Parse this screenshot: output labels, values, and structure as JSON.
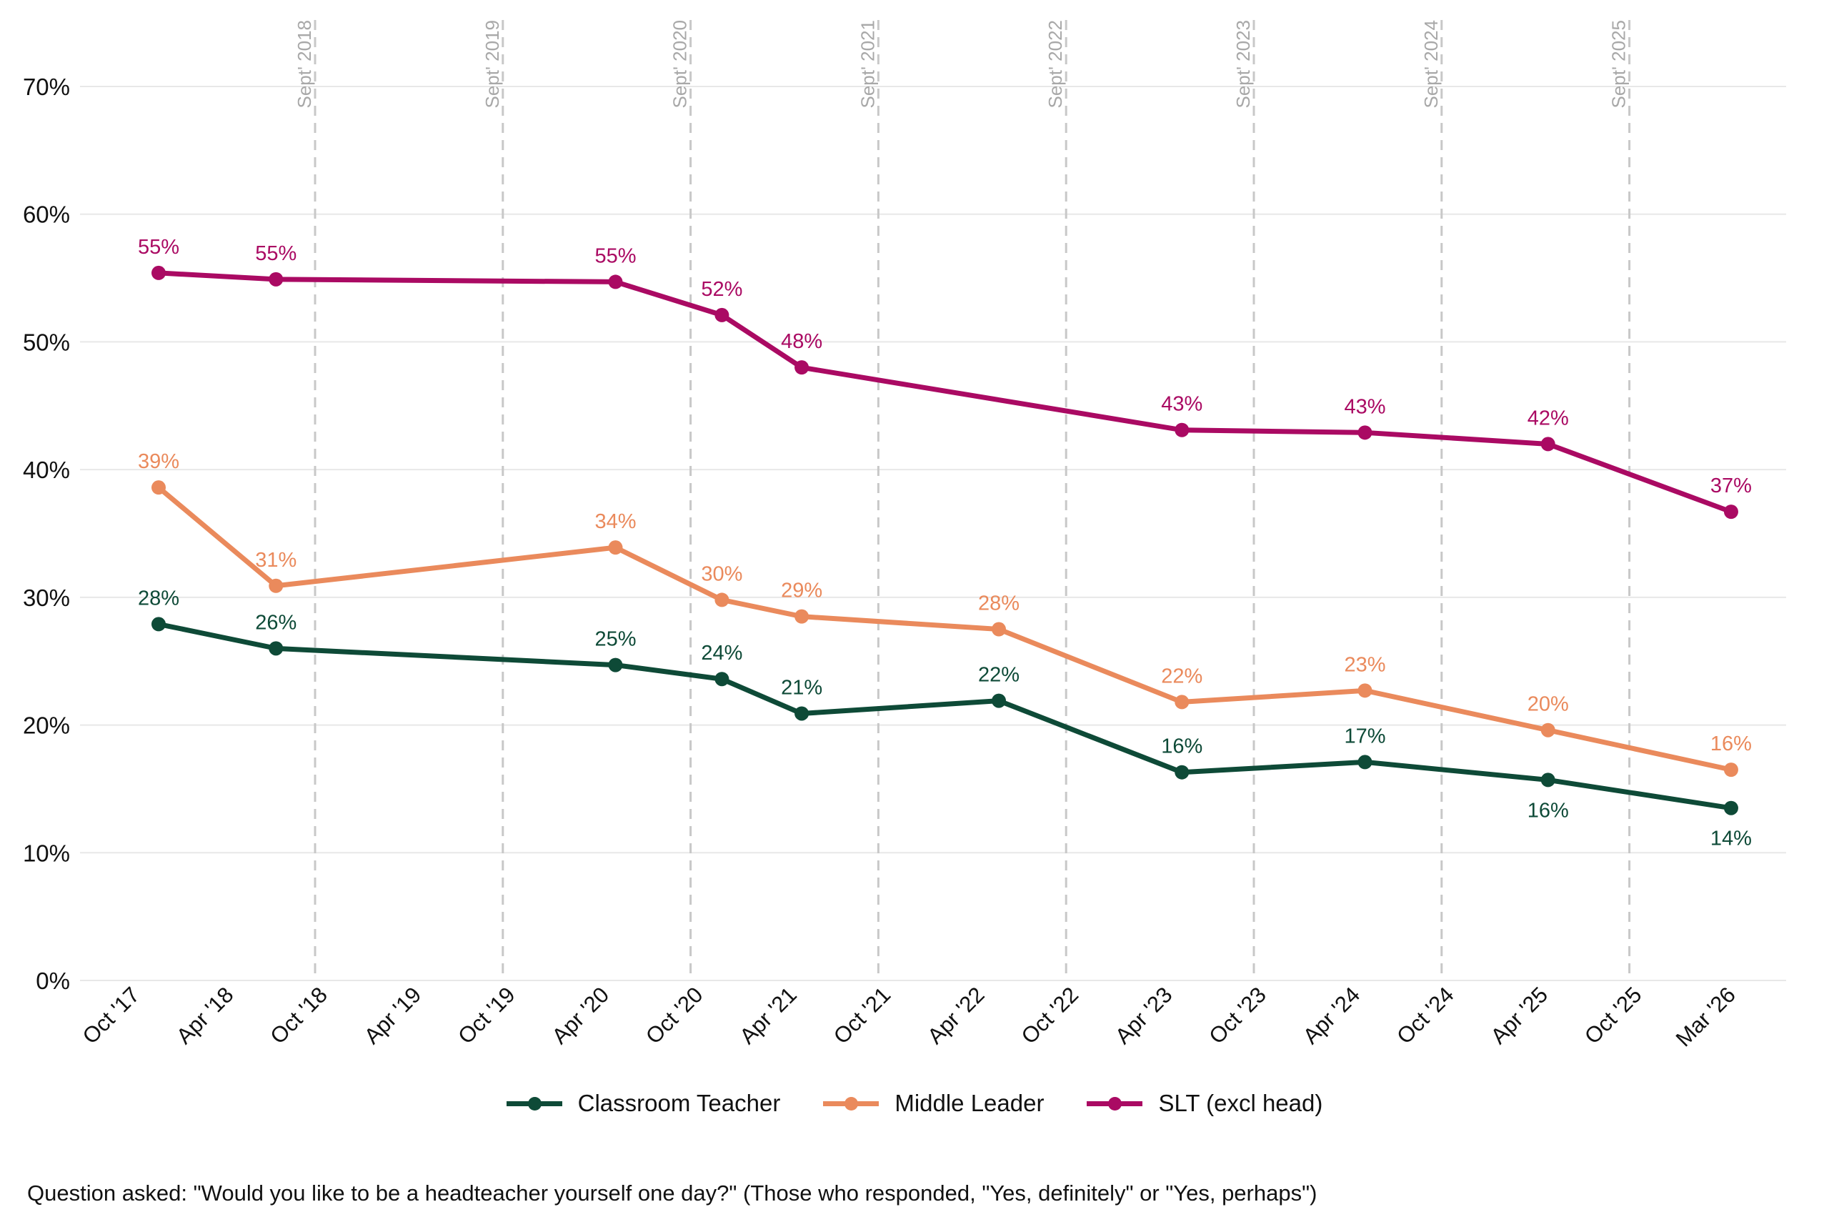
{
  "chart_data": {
    "type": "line",
    "title": "",
    "xlabel": "",
    "ylabel": "",
    "ylim": [
      0,
      70
    ],
    "yticks": [
      0,
      10,
      20,
      30,
      40,
      50,
      60,
      70
    ],
    "ytick_labels": [
      "0%",
      "10%",
      "20%",
      "30%",
      "40%",
      "50%",
      "60%",
      "70%"
    ],
    "x_unit": "months since Sept 2018",
    "xlim": [
      -14,
      96
    ],
    "xticks": [
      {
        "label": "Oct '17",
        "x": -11.5
      },
      {
        "label": "Apr '18",
        "x": -5.5
      },
      {
        "label": "Oct '18",
        "x": 0.5
      },
      {
        "label": "Apr '19",
        "x": 6.5
      },
      {
        "label": "Oct '19",
        "x": 12.5
      },
      {
        "label": "Apr '20",
        "x": 18.5
      },
      {
        "label": "Oct '20",
        "x": 24.5
      },
      {
        "label": "Apr '21",
        "x": 30.5
      },
      {
        "label": "Oct '21",
        "x": 36.5
      },
      {
        "label": "Apr '22",
        "x": 42.5
      },
      {
        "label": "Oct '22",
        "x": 48.5
      },
      {
        "label": "Apr '23",
        "x": 54.5
      },
      {
        "label": "Oct '23",
        "x": 60.5
      },
      {
        "label": "Apr '24",
        "x": 66.5
      },
      {
        "label": "Oct '24",
        "x": 72.5
      },
      {
        "label": "Apr '25",
        "x": 78.5
      },
      {
        "label": "Oct '25",
        "x": 84.5
      },
      {
        "label": "Mar '26",
        "x": 90.5
      }
    ],
    "reference_lines": [
      {
        "label": "Sept' 2018",
        "x": 0
      },
      {
        "label": "Sept' 2019",
        "x": 12
      },
      {
        "label": "Sept' 2020",
        "x": 24
      },
      {
        "label": "Sept' 2021",
        "x": 36
      },
      {
        "label": "Sept' 2022",
        "x": 48
      },
      {
        "label": "Sept' 2023",
        "x": 60
      },
      {
        "label": "Sept' 2024",
        "x": 72
      },
      {
        "label": "Sept' 2025",
        "x": 84
      }
    ],
    "grid": true,
    "legend_position": "bottom-center",
    "series": [
      {
        "name": "Classroom Teacher",
        "color": "#0e4a37",
        "label_position": [
          "above",
          "above",
          "above",
          "above",
          "above",
          "above",
          "above",
          "above",
          "below",
          "below"
        ],
        "x": [
          -10,
          -2.5,
          19.2,
          26,
          31.1,
          43.7,
          55.4,
          67.1,
          78.8,
          90.5
        ],
        "values": [
          27.9,
          26.0,
          24.7,
          23.6,
          20.9,
          21.9,
          16.3,
          17.1,
          15.7,
          13.5
        ],
        "labels": [
          "28%",
          "26%",
          "25%",
          "24%",
          "21%",
          "22%",
          "16%",
          "17%",
          "16%",
          "14%"
        ]
      },
      {
        "name": "Middle Leader",
        "color": "#ea8a5c",
        "label_position": [
          "above",
          "above",
          "above",
          "above",
          "above",
          "above",
          "above",
          "above",
          "above",
          "above"
        ],
        "x": [
          -10,
          -2.5,
          19.2,
          26,
          31.1,
          43.7,
          55.4,
          67.1,
          78.8,
          90.5
        ],
        "values": [
          38.6,
          30.9,
          33.9,
          29.8,
          28.5,
          27.5,
          21.8,
          22.7,
          19.6,
          16.5
        ],
        "labels": [
          "39%",
          "31%",
          "34%",
          "30%",
          "29%",
          "28%",
          "22%",
          "23%",
          "20%",
          "16%"
        ]
      },
      {
        "name": "SLT (excl head)",
        "color": "#aa0a63",
        "label_position": [
          "above",
          "above",
          "above",
          "above",
          "above",
          "above",
          "above",
          "above",
          "above"
        ],
        "x": [
          -10,
          -2.5,
          19.2,
          26,
          31.1,
          55.4,
          67.1,
          78.8,
          90.5
        ],
        "values": [
          55.4,
          54.9,
          54.7,
          52.1,
          48.0,
          43.1,
          42.9,
          42.0,
          36.7
        ],
        "labels": [
          "55%",
          "55%",
          "55%",
          "52%",
          "48%",
          "43%",
          "43%",
          "42%",
          "37%"
        ]
      }
    ]
  },
  "legend": {
    "items": [
      {
        "label": "Classroom Teacher",
        "color": "#0e4a37"
      },
      {
        "label": "Middle Leader",
        "color": "#ea8a5c"
      },
      {
        "label": "SLT (excl head)",
        "color": "#aa0a63"
      }
    ]
  },
  "footnote": "Question asked: \"Would you like to be a headteacher yourself one day?\" (Those who responded, \"Yes, definitely\" or \"Yes, perhaps\")"
}
